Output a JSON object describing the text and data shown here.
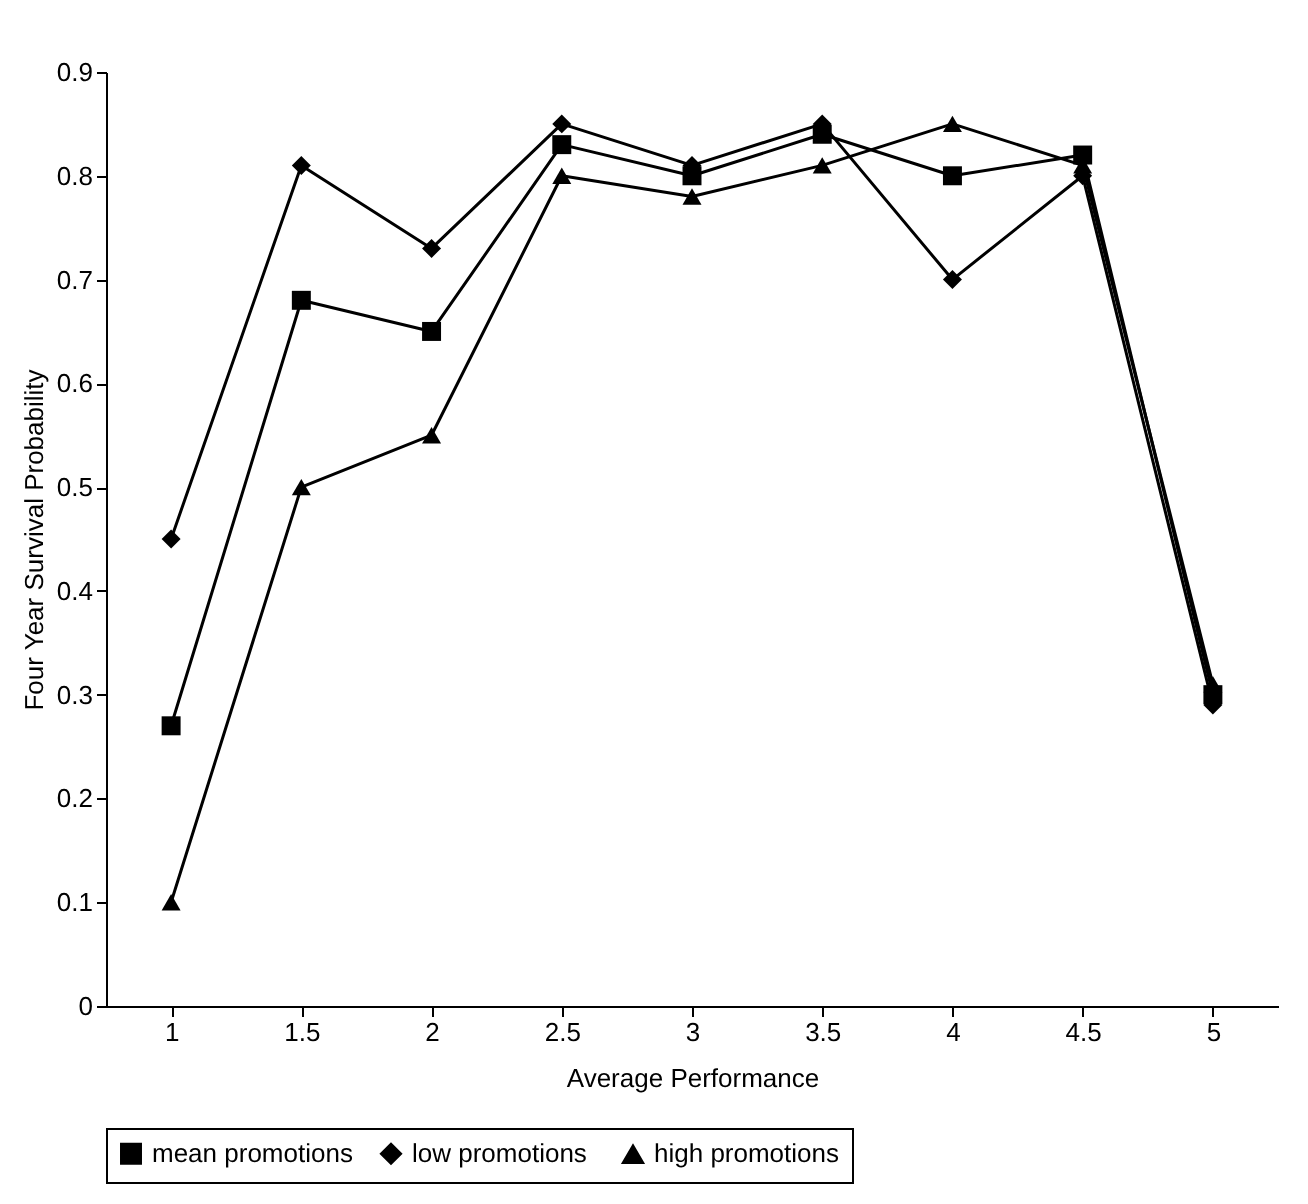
{
  "chart_data": {
    "type": "line",
    "xlabel": "Average Performance",
    "ylabel": "Four Year Survival Probability",
    "categories": [
      "1",
      "1.5",
      "2",
      "2.5",
      "3",
      "3.5",
      "4",
      "4.5",
      "5"
    ],
    "ylim": [
      0,
      0.9
    ],
    "yticks": [
      0,
      0.1,
      0.2,
      0.3,
      0.4,
      0.5,
      0.6,
      0.7,
      0.8,
      0.9
    ],
    "grid": false,
    "legend": "bottom",
    "line_style": "solid",
    "series": [
      {
        "name": "mean promotions",
        "color": "#000000",
        "marker": "square",
        "values": [
          0.27,
          0.68,
          0.65,
          0.83,
          0.8,
          0.84,
          0.8,
          0.82,
          0.3
        ]
      },
      {
        "name": "low  promotions",
        "color": "#000000",
        "marker": "diamond",
        "values": [
          0.45,
          0.81,
          0.73,
          0.85,
          0.81,
          0.85,
          0.7,
          0.8,
          0.29
        ]
      },
      {
        "name": "high promotions",
        "color": "#000000",
        "marker": "triangle",
        "values": [
          0.1,
          0.5,
          0.55,
          0.8,
          0.78,
          0.81,
          0.85,
          0.81,
          0.31
        ]
      }
    ]
  }
}
